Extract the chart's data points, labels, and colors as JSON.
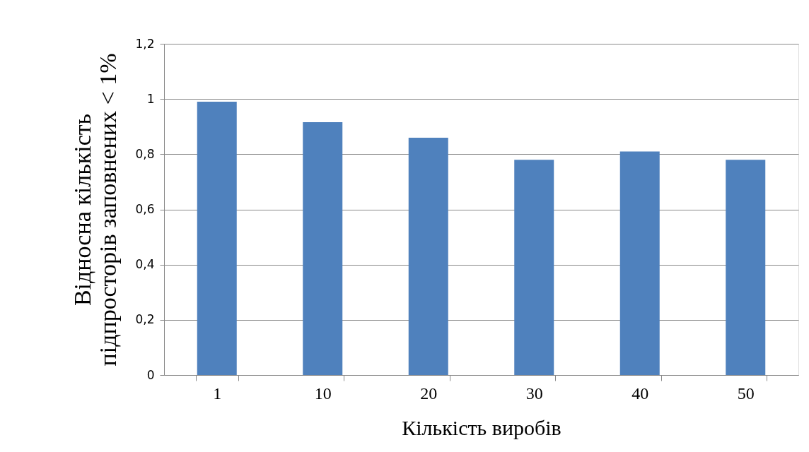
{
  "chart_data": {
    "type": "bar",
    "xlabel": "Кількість виробів",
    "ylabel": "Відносна кількість\nпідпросторів заповнених < 1%",
    "categories": [
      "1",
      "10",
      "20",
      "30",
      "40",
      "50"
    ],
    "values": [
      0.99,
      0.916,
      0.86,
      0.78,
      0.81,
      0.78
    ],
    "color": "#4f81bd",
    "ylim": [
      0,
      1.2
    ],
    "yticks": [
      0,
      {
        "value": 0.2,
        "label": "0,2"
      },
      {
        "value": 0.4,
        "label": "0,4"
      },
      {
        "value": 0.6,
        "label": "0,6"
      },
      {
        "value": 0.8,
        "label": "0,8"
      },
      1,
      {
        "value": 1.2,
        "label": "1,2"
      }
    ],
    "grid": "y"
  }
}
